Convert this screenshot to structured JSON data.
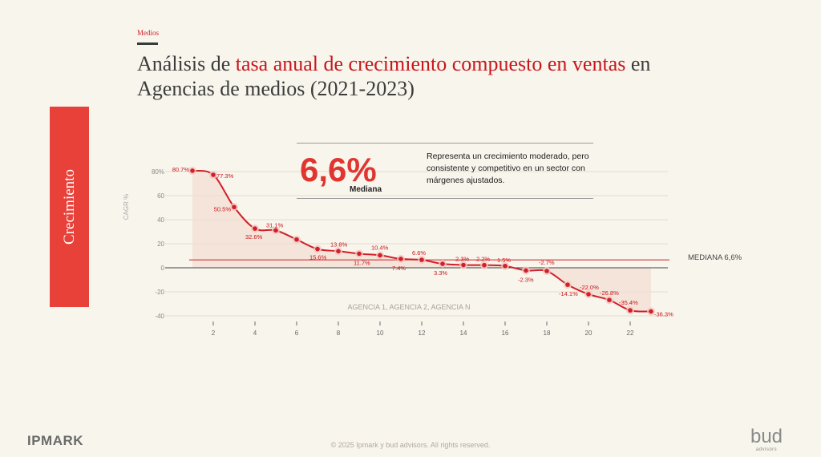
{
  "header": {
    "section": "Medios",
    "title_prefix": "Análisis de ",
    "title_highlight": "tasa anual de crecimiento compuesto en ventas",
    "title_suffix": " en Agencias de medios (2021-2023)"
  },
  "sidebar": {
    "label": "Crecimiento"
  },
  "kpi": {
    "value": "6,6%",
    "label": "Mediana",
    "description": "Representa un crecimiento moderado, pero consistente y competitivo en un sector con márgenes ajustados."
  },
  "median_line": {
    "label": "MEDIANA 6,6%",
    "value": 6.6
  },
  "colors": {
    "accent": "#d0202a",
    "side_block": "#e8413a",
    "background": "#f8f5ec"
  },
  "chart_data": {
    "type": "line",
    "ylabel": "CAGR %",
    "xlabel": "",
    "watermark": "AGENCIA 1, AGENCIA 2, AGENCIA N",
    "x": [
      1,
      2,
      3,
      4,
      5,
      6,
      7,
      8,
      9,
      10,
      11,
      12,
      13,
      14,
      15,
      16,
      17,
      18,
      19,
      20,
      21,
      22,
      23
    ],
    "values": [
      80.7,
      77.3,
      50.5,
      32.6,
      31.1,
      23.5,
      15.6,
      13.8,
      11.7,
      10.4,
      7.4,
      6.6,
      3.3,
      2.3,
      2.2,
      1.5,
      -2.3,
      -2.7,
      -14.1,
      -22.0,
      -26.8,
      -35.4,
      -36.3
    ],
    "data_labels": [
      "80.7%",
      "77.3%",
      "50.5%",
      "32.6%",
      "31.1%",
      "",
      "15.6%",
      "13.8%",
      "11.7%",
      "10.4%",
      "7.4%",
      "6.6%",
      "3.3%",
      "2.3%",
      "2.2%",
      "1.5%",
      "-2.3%",
      "-2.7%",
      "-14.1%",
      "-22.0%",
      "-26.8%",
      "-35.4%",
      "-36.3%"
    ],
    "x_ticks": [
      2,
      4,
      6,
      8,
      10,
      12,
      14,
      16,
      18,
      20,
      22
    ],
    "y_ticks": [
      80,
      60,
      40,
      20,
      0,
      -20,
      -40
    ],
    "y_tick_labels": [
      "80%",
      "60",
      "40",
      "20",
      "0",
      "-20",
      "-40"
    ],
    "ylim": [
      -40,
      80
    ],
    "xlim": [
      0,
      24
    ],
    "grid": true
  }
}
